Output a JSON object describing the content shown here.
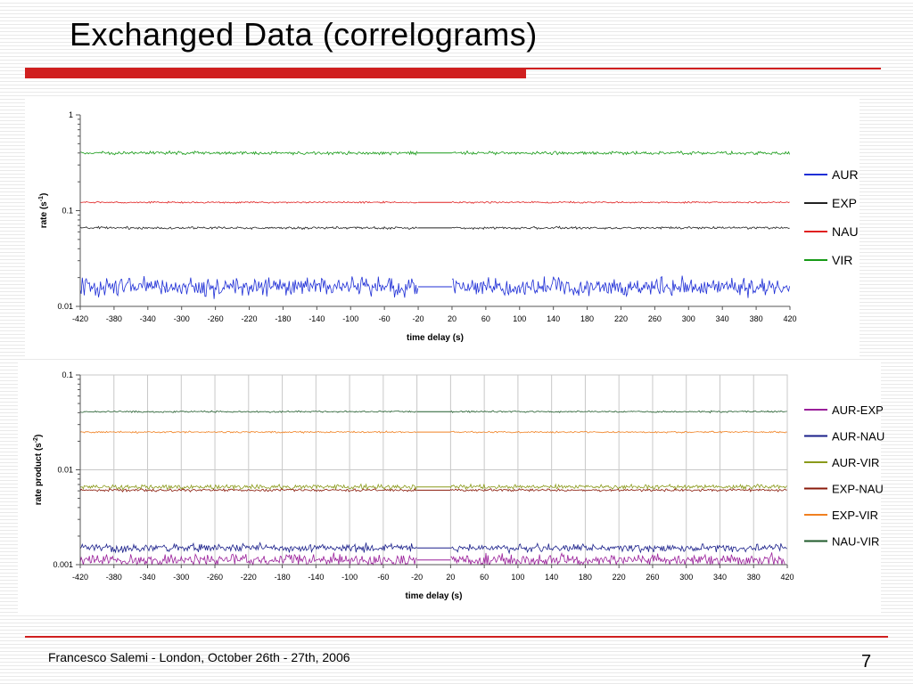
{
  "slide": {
    "title": "Exchanged Data (correlograms)",
    "footer": "Francesco Salemi - London, October 26th - 27th, 2006",
    "page_number": "7",
    "accent_color": "#d01f1f"
  },
  "chart_data": [
    {
      "type": "line",
      "xlabel": "time delay (s)",
      "ylabel": "rate (s",
      "ylabel_sup": "-1",
      "ylabel_suffix": ")",
      "yscale": "log",
      "ylim": [
        0.01,
        1
      ],
      "yticks": [
        {
          "value": 0.01,
          "label": "0.01"
        },
        {
          "value": 0.1,
          "label": "0.1"
        },
        {
          "value": 1,
          "label": "1"
        }
      ],
      "xlim": [
        -420,
        420
      ],
      "xticks": [
        -420,
        -380,
        -340,
        -300,
        -260,
        -220,
        -180,
        -140,
        -100,
        -60,
        -20,
        20,
        60,
        100,
        140,
        180,
        220,
        260,
        300,
        340,
        380,
        420
      ],
      "xtick_labels": [
        "-420",
        "-380",
        "-340",
        "-300",
        "-260",
        "-220",
        "-180",
        "-140",
        "-100",
        "-60",
        "-20",
        "20",
        "60",
        "100",
        "140",
        "180",
        "220",
        "260",
        "300",
        "340",
        "380",
        "420"
      ],
      "gap": [
        -20,
        20
      ],
      "grid": false,
      "legend_position": "right",
      "series": [
        {
          "name": "AUR",
          "color": "#1f2fd6",
          "mean": 0.016,
          "noise": 0.14
        },
        {
          "name": "EXP",
          "color": "#222222",
          "mean": 0.066,
          "noise": 0.018
        },
        {
          "name": "NAU",
          "color": "#e02020",
          "mean": 0.122,
          "noise": 0.012
        },
        {
          "name": "VIR",
          "color": "#169a16",
          "mean": 0.4,
          "noise": 0.025
        }
      ]
    },
    {
      "type": "line",
      "xlabel": "time delay (s)",
      "ylabel": "rate product (s",
      "ylabel_sup": "-2",
      "ylabel_suffix": ")",
      "yscale": "log",
      "ylim": [
        0.001,
        0.1
      ],
      "yticks": [
        {
          "value": 0.001,
          "label": "0.001"
        },
        {
          "value": 0.01,
          "label": "0.01"
        },
        {
          "value": 0.1,
          "label": "0.1"
        }
      ],
      "xlim": [
        -420,
        420
      ],
      "xticks": [
        -420,
        -380,
        -340,
        -300,
        -260,
        -220,
        -180,
        -140,
        -100,
        -60,
        -20,
        20,
        60,
        100,
        140,
        180,
        220,
        260,
        300,
        340,
        380,
        420
      ],
      "xtick_labels": [
        "-420",
        "-380",
        "-340",
        "-300",
        "-260",
        "-220",
        "-180",
        "-140",
        "-100",
        "-60",
        "-20",
        "20",
        "60",
        "100",
        "140",
        "180",
        "220",
        "260",
        "300",
        "340",
        "380",
        "420"
      ],
      "gap": [
        -20,
        20
      ],
      "grid": true,
      "legend_position": "right",
      "series": [
        {
          "name": "AUR-EXP",
          "color": "#9a1f9a",
          "mean": 0.00112,
          "noise": 0.09
        },
        {
          "name": "AUR-NAU",
          "color": "#1a1f8a",
          "mean": 0.0015,
          "noise": 0.06
        },
        {
          "name": "AUR-VIR",
          "color": "#8a9a1a",
          "mean": 0.0066,
          "noise": 0.035
        },
        {
          "name": "EXP-NAU",
          "color": "#8a1a0a",
          "mean": 0.0061,
          "noise": 0.02
        },
        {
          "name": "EXP-VIR",
          "color": "#f08020",
          "mean": 0.025,
          "noise": 0.012
        },
        {
          "name": "NAU-VIR",
          "color": "#1f5a2a",
          "mean": 0.041,
          "noise": 0.012
        }
      ]
    }
  ]
}
